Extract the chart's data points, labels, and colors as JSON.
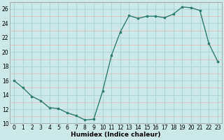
{
  "x": [
    0,
    1,
    2,
    3,
    4,
    5,
    6,
    7,
    8,
    9,
    10,
    11,
    12,
    13,
    14,
    15,
    16,
    17,
    18,
    19,
    20,
    21,
    22,
    23
  ],
  "y": [
    16,
    15,
    13.8,
    13.2,
    12.2,
    12.1,
    11.5,
    11.1,
    10.5,
    10.6,
    14.5,
    19.5,
    22.8,
    25.1,
    24.7,
    25.0,
    25.0,
    24.8,
    25.3,
    26.3,
    26.2,
    25.8,
    21.2,
    18.7
  ],
  "xlabel": "Humidex (Indice chaleur)",
  "line_color": "#2e7d6e",
  "bg_color": "#cce8e8",
  "major_grid_color": "#b0d8d8",
  "minor_grid_color": "#e8b8b8",
  "ylim": [
    10,
    27
  ],
  "xlim": [
    -0.5,
    23.5
  ],
  "yticks": [
    10,
    12,
    14,
    16,
    18,
    20,
    22,
    24,
    26
  ],
  "xticks": [
    0,
    1,
    2,
    3,
    4,
    5,
    6,
    7,
    8,
    9,
    10,
    11,
    12,
    13,
    14,
    15,
    16,
    17,
    18,
    19,
    20,
    21,
    22,
    23
  ]
}
